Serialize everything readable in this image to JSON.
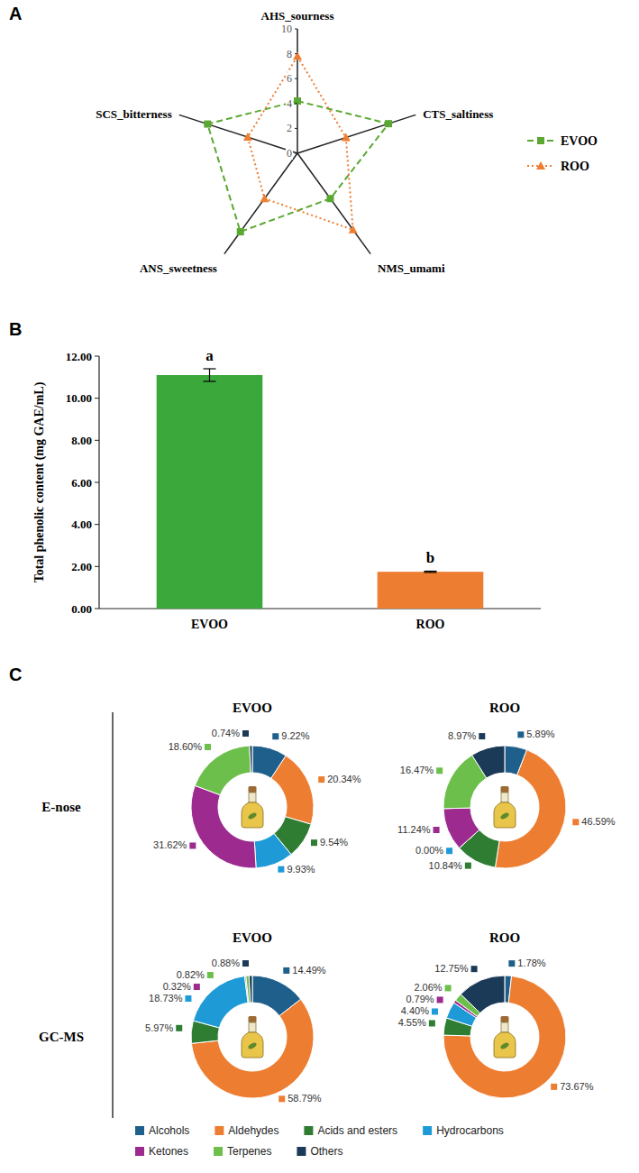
{
  "chart_data": [
    {
      "type": "radar",
      "panel": "A",
      "categories": [
        "AHS_sourness",
        "CTS_saltiness",
        "NMS_umami",
        "ANS_sweetness",
        "SCS_bitterness"
      ],
      "series": [
        {
          "name": "EVOO",
          "color": "#5aa832",
          "values": [
            4.2,
            7.7,
            4.5,
            7.8,
            7.6
          ],
          "marker": "square",
          "line_style": "dashed"
        },
        {
          "name": "ROO",
          "color": "#ed7d31",
          "values": [
            7.8,
            4.1,
            7.6,
            4.5,
            4.2
          ],
          "marker": "triangle",
          "line_style": "dotted"
        }
      ],
      "ylim": [
        0,
        10
      ],
      "yticks": [
        0,
        2,
        4,
        6,
        8,
        10
      ],
      "legend": "right"
    },
    {
      "type": "bar",
      "panel": "B",
      "categories": [
        "EVOO",
        "ROO"
      ],
      "values": [
        11.1,
        1.75
      ],
      "errors": [
        0.3,
        0.03
      ],
      "annotations": [
        "a",
        "b"
      ],
      "colors": [
        "#3aa83a",
        "#ed7d31"
      ],
      "y_label": "Total phenolic content (mg GAE/mL)",
      "ylim": [
        0,
        12
      ],
      "yticks": [
        {
          "value": 0,
          "label": "0.00"
        },
        {
          "value": 2,
          "label": "2.00"
        },
        {
          "value": 4,
          "label": "4.00"
        },
        {
          "value": 6,
          "label": "6.00"
        },
        {
          "value": 8,
          "label": "8.00"
        },
        {
          "value": 10,
          "label": "10.00"
        },
        {
          "value": 12,
          "label": "12.00"
        }
      ],
      "grid": false
    },
    {
      "type": "donut",
      "panel": "C",
      "title": "EVOO",
      "row_label": "E-nose",
      "categories": [
        "Alcohols",
        "Aldehydes",
        "Acids and esters",
        "Hydrocarbons",
        "Ketones",
        "Terpenes",
        "Others"
      ],
      "values": [
        9.22,
        20.34,
        9.54,
        9.93,
        31.62,
        18.6,
        0.74
      ],
      "value_labels": [
        "9.22%",
        "20.34%",
        "9.54%",
        "9.93%",
        "31.62%",
        "18.60%",
        "0.74%"
      ],
      "colors": [
        "#1f5f8b",
        "#ed7d31",
        "#2e7d32",
        "#1e9bd7",
        "#9c2a8f",
        "#6cbf4a",
        "#1b3a57"
      ],
      "data_labels": true,
      "legend": "bottom"
    },
    {
      "type": "donut",
      "title": "ROO",
      "categories": [
        "Alcohols",
        "Aldehydes",
        "Acids and esters",
        "Hydrocarbons",
        "Ketones",
        "Terpenes",
        "Others"
      ],
      "values": [
        5.89,
        46.59,
        10.84,
        0.0,
        11.24,
        16.47,
        8.97
      ],
      "value_labels": [
        "5.89%",
        "46.59%",
        "10.84%",
        "0.00%",
        "11.24%",
        "16.47%",
        "8.97%"
      ],
      "colors": [
        "#1f5f8b",
        "#ed7d31",
        "#2e7d32",
        "#1e9bd7",
        "#9c2a8f",
        "#6cbf4a",
        "#1b3a57"
      ],
      "data_labels": true
    },
    {
      "type": "donut",
      "title": "EVOO",
      "row_label": "GC-MS",
      "categories": [
        "Alcohols",
        "Aldehydes",
        "Acids and esters",
        "Hydrocarbons",
        "Ketones",
        "Terpenes",
        "Others"
      ],
      "values": [
        14.49,
        58.79,
        5.97,
        18.73,
        0.32,
        0.82,
        0.88
      ],
      "value_labels": [
        "14.49%",
        "58.79%",
        "5.97%",
        "18.73%",
        "0.32%",
        "0.82%",
        "0.88%"
      ],
      "colors": [
        "#1f5f8b",
        "#ed7d31",
        "#2e7d32",
        "#1e9bd7",
        "#9c2a8f",
        "#6cbf4a",
        "#1b3a57"
      ],
      "data_labels": true
    },
    {
      "type": "donut",
      "title": "ROO",
      "categories": [
        "Alcohols",
        "Aldehydes",
        "Acids and esters",
        "Hydrocarbons",
        "Ketones",
        "Terpenes",
        "Others"
      ],
      "values": [
        1.78,
        73.67,
        4.55,
        4.4,
        0.79,
        2.06,
        12.75
      ],
      "value_labels": [
        "1.78%",
        "73.67%",
        "4.55%",
        "4.40%",
        "0.79%",
        "2.06%",
        "12.75%"
      ],
      "colors": [
        "#1f5f8b",
        "#ed7d31",
        "#2e7d32",
        "#1e9bd7",
        "#9c2a8f",
        "#6cbf4a",
        "#1b3a57"
      ],
      "data_labels": true
    }
  ]
}
